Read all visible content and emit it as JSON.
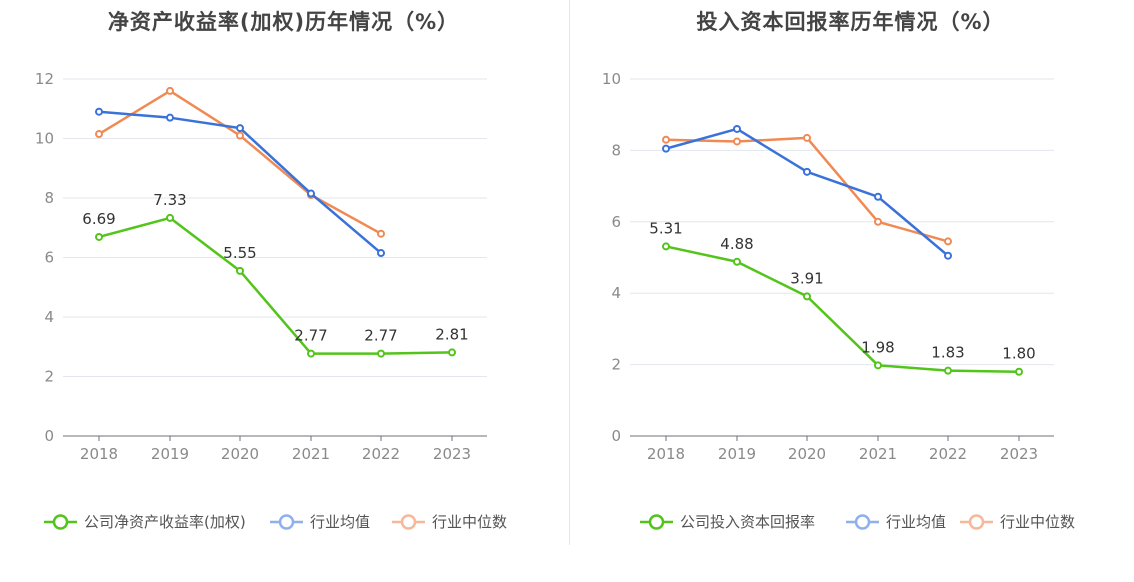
{
  "colors": {
    "company": "#52c41a",
    "industry_avg": "#3a72d9",
    "industry_median": "#f08a55",
    "legend_avg": "#8fb0ee",
    "legend_median": "#f7b79a"
  },
  "chart_data": [
    {
      "type": "line",
      "title": "净资产收益率(加权)历年情况（%）",
      "x": [
        "2018",
        "2019",
        "2020",
        "2021",
        "2022",
        "2023"
      ],
      "ylim": [
        0,
        12
      ],
      "yticks": [
        "0",
        "2",
        "4",
        "6",
        "8",
        "10",
        "12"
      ],
      "series": [
        {
          "name": "公司净资产收益率(加权)",
          "key": "company",
          "values": [
            6.69,
            7.33,
            5.55,
            2.77,
            2.77,
            2.81
          ],
          "labels": [
            "6.69",
            "7.33",
            "5.55",
            "2.77",
            "2.77",
            "2.81"
          ]
        },
        {
          "name": "行业均值",
          "key": "industry_avg",
          "values": [
            10.9,
            10.7,
            10.35,
            8.15,
            6.15,
            null
          ]
        },
        {
          "name": "行业中位数",
          "key": "industry_median",
          "values": [
            10.15,
            11.6,
            10.1,
            8.1,
            6.8,
            null
          ]
        }
      ]
    },
    {
      "type": "line",
      "title": "投入资本回报率历年情况（%）",
      "x": [
        "2018",
        "2019",
        "2020",
        "2021",
        "2022",
        "2023"
      ],
      "ylim": [
        0,
        10
      ],
      "yticks": [
        "0",
        "2",
        "4",
        "6",
        "8",
        "10"
      ],
      "series": [
        {
          "name": "公司投入资本回报率",
          "key": "company",
          "values": [
            5.31,
            4.88,
            3.91,
            1.98,
            1.83,
            1.8
          ],
          "labels": [
            "5.31",
            "4.88",
            "3.91",
            "1.98",
            "1.83",
            "1.80"
          ]
        },
        {
          "name": "行业均值",
          "key": "industry_avg",
          "values": [
            8.05,
            8.6,
            7.4,
            6.7,
            5.05,
            null
          ]
        },
        {
          "name": "行业中位数",
          "key": "industry_median",
          "values": [
            8.3,
            8.25,
            8.35,
            6.0,
            5.45,
            null
          ]
        }
      ]
    }
  ]
}
